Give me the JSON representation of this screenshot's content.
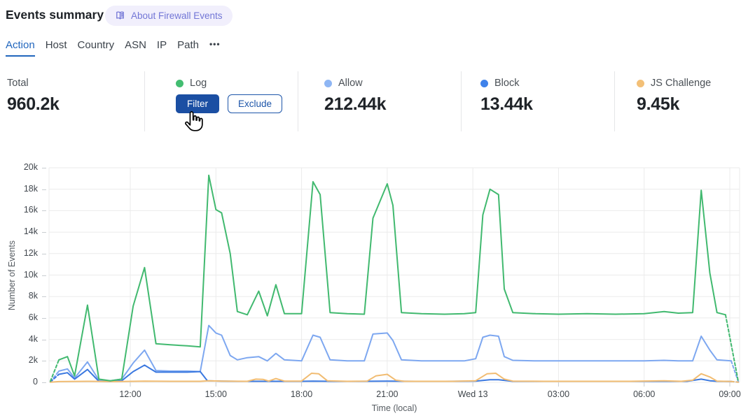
{
  "header": {
    "title": "Events summary",
    "badge": {
      "label": "About Firewall Events",
      "icon": "open-book-icon",
      "bg": "#f1effc",
      "fg": "#7276d6"
    }
  },
  "tabs": {
    "active_color": "#2166bd",
    "items": [
      {
        "label": "Action",
        "active": true
      },
      {
        "label": "Host",
        "active": false
      },
      {
        "label": "Country",
        "active": false
      },
      {
        "label": "ASN",
        "active": false
      },
      {
        "label": "IP",
        "active": false
      },
      {
        "label": "Path",
        "active": false
      },
      {
        "label": "•••",
        "active": false
      }
    ]
  },
  "stats": {
    "cards": [
      {
        "label": "Total",
        "value": "960.2k"
      },
      {
        "label": "Log",
        "dot_color": "#43bd71",
        "buttons": [
          {
            "label": "Filter",
            "bg": "#1b4fa3",
            "fg": "#ffffff"
          },
          {
            "label": "Exclude",
            "fg": "#1d55a9",
            "border": "#1d55a9"
          }
        ]
      },
      {
        "label": "Allow",
        "value": "212.44k",
        "dot_color": "#8eb6f4"
      },
      {
        "label": "Block",
        "value": "13.44k",
        "dot_color": "#3f82ea"
      },
      {
        "label": "JS Challenge",
        "value": "9.45k",
        "dot_color": "#f3c077"
      }
    ]
  },
  "chart_data": {
    "type": "line",
    "title": "",
    "xlabel": "Time (local)",
    "ylabel": "Number of Events",
    "y_unit": "thousands of events (k)",
    "ylim": [
      0,
      20
    ],
    "grid": true,
    "legend_position": "none (legend shown as colored dots in stat cards above)",
    "x_axis_note": "x = hours since Tuesday 00:00 local time; 24 = Wed 13 00:00; dashed end segments are partial intervals",
    "y_ticks": [
      {
        "v": 0,
        "label": "0"
      },
      {
        "v": 2,
        "label": "2k"
      },
      {
        "v": 4,
        "label": "4k"
      },
      {
        "v": 6,
        "label": "6k"
      },
      {
        "v": 8,
        "label": "8k"
      },
      {
        "v": 10,
        "label": "10k"
      },
      {
        "v": 12,
        "label": "12k"
      },
      {
        "v": 14,
        "label": "14k"
      },
      {
        "v": 16,
        "label": "16k"
      },
      {
        "v": 18,
        "label": "18k"
      },
      {
        "v": 20,
        "label": "20k"
      }
    ],
    "x_ticks": [
      {
        "h": 12,
        "label": "12:00"
      },
      {
        "h": 15,
        "label": "15:00"
      },
      {
        "h": 18,
        "label": "18:00"
      },
      {
        "h": 21,
        "label": "21:00"
      },
      {
        "h": 24,
        "label": "Wed 13"
      },
      {
        "h": 27,
        "label": "03:00"
      },
      {
        "h": 30,
        "label": "06:00"
      },
      {
        "h": 33,
        "label": "09:00"
      }
    ],
    "draw_order": [
      1,
      2,
      3,
      0
    ],
    "series": [
      {
        "name": "Log",
        "color": "#41b96f",
        "dash_first": true,
        "dash_last": true,
        "points": [
          [
            9.2,
            0.1
          ],
          [
            9.5,
            2.1
          ],
          [
            9.8,
            2.4
          ],
          [
            10.05,
            0.6
          ],
          [
            10.5,
            7.2
          ],
          [
            10.9,
            0.3
          ],
          [
            11.3,
            0.15
          ],
          [
            11.7,
            0.3
          ],
          [
            12.1,
            7.1
          ],
          [
            12.5,
            10.7
          ],
          [
            12.9,
            3.6
          ],
          [
            13.4,
            3.5
          ],
          [
            14.0,
            3.4
          ],
          [
            14.45,
            3.3
          ],
          [
            14.75,
            19.3
          ],
          [
            15.0,
            16.1
          ],
          [
            15.2,
            15.8
          ],
          [
            15.5,
            12.0
          ],
          [
            15.75,
            6.6
          ],
          [
            16.1,
            6.3
          ],
          [
            16.5,
            8.5
          ],
          [
            16.8,
            6.2
          ],
          [
            17.1,
            9.1
          ],
          [
            17.4,
            6.4
          ],
          [
            18.0,
            6.4
          ],
          [
            18.4,
            18.7
          ],
          [
            18.65,
            17.5
          ],
          [
            19.0,
            6.5
          ],
          [
            19.6,
            6.4
          ],
          [
            20.2,
            6.35
          ],
          [
            20.5,
            15.3
          ],
          [
            21.0,
            18.5
          ],
          [
            21.2,
            16.5
          ],
          [
            21.5,
            6.5
          ],
          [
            22.2,
            6.4
          ],
          [
            23.0,
            6.35
          ],
          [
            23.7,
            6.4
          ],
          [
            24.1,
            6.5
          ],
          [
            24.35,
            15.6
          ],
          [
            24.6,
            18.0
          ],
          [
            24.9,
            17.5
          ],
          [
            25.1,
            8.7
          ],
          [
            25.4,
            6.5
          ],
          [
            26.2,
            6.4
          ],
          [
            27.0,
            6.35
          ],
          [
            28.0,
            6.4
          ],
          [
            29.0,
            6.35
          ],
          [
            30.0,
            6.4
          ],
          [
            30.7,
            6.6
          ],
          [
            31.2,
            6.45
          ],
          [
            31.7,
            6.5
          ],
          [
            32.0,
            17.9
          ],
          [
            32.3,
            10.2
          ],
          [
            32.55,
            6.5
          ],
          [
            32.85,
            6.3
          ],
          [
            33.3,
            0.05
          ]
        ]
      },
      {
        "name": "Allow",
        "color": "#7da7f0",
        "dash_first": true,
        "dash_last": true,
        "points": [
          [
            9.2,
            0.05
          ],
          [
            9.5,
            1.05
          ],
          [
            9.8,
            1.25
          ],
          [
            10.05,
            0.4
          ],
          [
            10.5,
            1.9
          ],
          [
            10.9,
            0.2
          ],
          [
            11.3,
            0.15
          ],
          [
            11.7,
            0.3
          ],
          [
            12.1,
            1.8
          ],
          [
            12.5,
            3.0
          ],
          [
            12.9,
            1.1
          ],
          [
            13.4,
            1.05
          ],
          [
            14.0,
            1.05
          ],
          [
            14.45,
            1.0
          ],
          [
            14.75,
            5.3
          ],
          [
            15.0,
            4.6
          ],
          [
            15.2,
            4.4
          ],
          [
            15.5,
            2.5
          ],
          [
            15.75,
            2.1
          ],
          [
            16.1,
            2.3
          ],
          [
            16.5,
            2.4
          ],
          [
            16.8,
            2.0
          ],
          [
            17.1,
            2.7
          ],
          [
            17.4,
            2.1
          ],
          [
            18.0,
            2.0
          ],
          [
            18.4,
            4.4
          ],
          [
            18.65,
            4.2
          ],
          [
            19.0,
            2.1
          ],
          [
            19.6,
            2.0
          ],
          [
            20.2,
            2.0
          ],
          [
            20.5,
            4.5
          ],
          [
            21.0,
            4.6
          ],
          [
            21.2,
            3.9
          ],
          [
            21.5,
            2.1
          ],
          [
            22.2,
            2.0
          ],
          [
            23.0,
            2.0
          ],
          [
            23.7,
            2.0
          ],
          [
            24.1,
            2.2
          ],
          [
            24.35,
            4.2
          ],
          [
            24.6,
            4.4
          ],
          [
            24.9,
            4.3
          ],
          [
            25.1,
            2.4
          ],
          [
            25.4,
            2.05
          ],
          [
            26.2,
            2.0
          ],
          [
            27.0,
            2.0
          ],
          [
            28.0,
            2.0
          ],
          [
            29.0,
            2.0
          ],
          [
            30.0,
            2.0
          ],
          [
            30.7,
            2.05
          ],
          [
            31.2,
            2.0
          ],
          [
            31.7,
            2.0
          ],
          [
            32.0,
            4.3
          ],
          [
            32.3,
            3.0
          ],
          [
            32.55,
            2.1
          ],
          [
            33.05,
            2.0
          ],
          [
            33.3,
            0.05
          ]
        ]
      },
      {
        "name": "Block",
        "color": "#3a78e0",
        "dash_first": true,
        "dash_last": true,
        "points": [
          [
            9.2,
            0.03
          ],
          [
            9.5,
            0.75
          ],
          [
            9.8,
            0.9
          ],
          [
            10.05,
            0.3
          ],
          [
            10.5,
            1.2
          ],
          [
            10.9,
            0.1
          ],
          [
            11.3,
            0.08
          ],
          [
            11.7,
            0.15
          ],
          [
            12.1,
            1.0
          ],
          [
            12.5,
            1.6
          ],
          [
            12.9,
            0.95
          ],
          [
            13.4,
            0.95
          ],
          [
            14.0,
            0.95
          ],
          [
            14.45,
            1.0
          ],
          [
            14.7,
            0.15
          ],
          [
            15.2,
            0.12
          ],
          [
            15.75,
            0.1
          ],
          [
            16.5,
            0.1
          ],
          [
            17.4,
            0.1
          ],
          [
            18.0,
            0.1
          ],
          [
            18.4,
            0.12
          ],
          [
            19.0,
            0.1
          ],
          [
            20.0,
            0.1
          ],
          [
            21.0,
            0.12
          ],
          [
            22.0,
            0.1
          ],
          [
            23.0,
            0.1
          ],
          [
            24.1,
            0.12
          ],
          [
            24.6,
            0.25
          ],
          [
            24.9,
            0.25
          ],
          [
            25.4,
            0.1
          ],
          [
            26.5,
            0.1
          ],
          [
            28.0,
            0.1
          ],
          [
            30.0,
            0.1
          ],
          [
            31.5,
            0.1
          ],
          [
            32.0,
            0.3
          ],
          [
            32.3,
            0.15
          ],
          [
            32.55,
            0.1
          ],
          [
            33.05,
            0.08
          ],
          [
            33.3,
            0.02
          ]
        ]
      },
      {
        "name": "JS Challenge",
        "color": "#f1bc72",
        "dash_first": false,
        "dash_last": true,
        "points": [
          [
            9.2,
            0.02
          ],
          [
            9.5,
            0.07
          ],
          [
            10.5,
            0.1
          ],
          [
            11.5,
            0.07
          ],
          [
            12.5,
            0.12
          ],
          [
            13.4,
            0.1
          ],
          [
            14.45,
            0.1
          ],
          [
            14.75,
            0.15
          ],
          [
            15.2,
            0.12
          ],
          [
            16.1,
            0.1
          ],
          [
            16.4,
            0.3
          ],
          [
            16.65,
            0.28
          ],
          [
            16.85,
            0.12
          ],
          [
            17.1,
            0.35
          ],
          [
            17.4,
            0.12
          ],
          [
            18.0,
            0.12
          ],
          [
            18.35,
            0.85
          ],
          [
            18.6,
            0.8
          ],
          [
            18.9,
            0.15
          ],
          [
            19.6,
            0.1
          ],
          [
            20.3,
            0.12
          ],
          [
            20.6,
            0.6
          ],
          [
            21.0,
            0.75
          ],
          [
            21.3,
            0.2
          ],
          [
            21.6,
            0.1
          ],
          [
            22.5,
            0.1
          ],
          [
            23.3,
            0.1
          ],
          [
            24.1,
            0.15
          ],
          [
            24.5,
            0.8
          ],
          [
            24.8,
            0.85
          ],
          [
            25.1,
            0.3
          ],
          [
            25.4,
            0.12
          ],
          [
            26.5,
            0.1
          ],
          [
            28.0,
            0.1
          ],
          [
            29.5,
            0.1
          ],
          [
            30.7,
            0.15
          ],
          [
            31.3,
            0.1
          ],
          [
            31.7,
            0.2
          ],
          [
            32.0,
            0.8
          ],
          [
            32.3,
            0.5
          ],
          [
            32.55,
            0.12
          ],
          [
            33.05,
            0.08
          ],
          [
            33.3,
            0.02
          ]
        ]
      }
    ]
  }
}
